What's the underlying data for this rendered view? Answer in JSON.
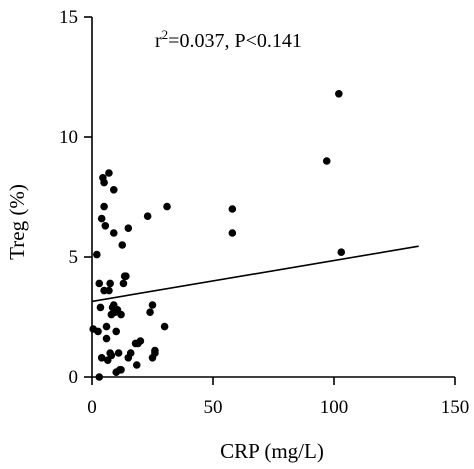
{
  "chart_data": {
    "type": "scatter",
    "title": "",
    "xlabel": "CRP (mg/L)",
    "ylabel": "Treg (%)",
    "xlim": [
      0,
      150
    ],
    "ylim": [
      0,
      15
    ],
    "xticks": [
      0,
      50,
      100,
      150
    ],
    "yticks": [
      0,
      5,
      10,
      15
    ],
    "grid": false,
    "annotation": {
      "r_prefix": "r",
      "r_exponent": "2",
      "r_rest": "=0.037, P<0.141"
    },
    "series": [
      {
        "points": [
          [
            0.5,
            2.0
          ],
          [
            2.0,
            5.1
          ],
          [
            2.5,
            1.9
          ],
          [
            3.0,
            0.0
          ],
          [
            3.0,
            3.9
          ],
          [
            3.5,
            2.9
          ],
          [
            4.0,
            6.6
          ],
          [
            4.0,
            0.8
          ],
          [
            4.5,
            8.3
          ],
          [
            5.0,
            8.1
          ],
          [
            5.0,
            3.6
          ],
          [
            5.0,
            7.1
          ],
          [
            5.5,
            6.3
          ],
          [
            6.0,
            2.1
          ],
          [
            6.0,
            1.6
          ],
          [
            6.5,
            0.7
          ],
          [
            7.0,
            8.5
          ],
          [
            7.0,
            3.6
          ],
          [
            7.5,
            3.9
          ],
          [
            7.5,
            1.0
          ],
          [
            8.0,
            2.6
          ],
          [
            8.0,
            0.9
          ],
          [
            8.5,
            2.9
          ],
          [
            9.0,
            3.0
          ],
          [
            9.0,
            7.8
          ],
          [
            9.0,
            6.0
          ],
          [
            9.5,
            2.7
          ],
          [
            10.0,
            1.9
          ],
          [
            10.0,
            0.2
          ],
          [
            10.5,
            2.8
          ],
          [
            11.0,
            1.0
          ],
          [
            11.5,
            0.3
          ],
          [
            12.0,
            2.6
          ],
          [
            12.0,
            0.3
          ],
          [
            12.5,
            5.5
          ],
          [
            13.0,
            3.9
          ],
          [
            13.5,
            4.2
          ],
          [
            14.0,
            4.2
          ],
          [
            15.0,
            6.2
          ],
          [
            15.0,
            0.8
          ],
          [
            16.0,
            1.0
          ],
          [
            18.0,
            1.4
          ],
          [
            18.5,
            0.5
          ],
          [
            19.0,
            1.4
          ],
          [
            20.0,
            1.5
          ],
          [
            23.0,
            6.7
          ],
          [
            24.0,
            2.7
          ],
          [
            25.0,
            3.0
          ],
          [
            25.0,
            0.8
          ],
          [
            26.0,
            1.0
          ],
          [
            26.0,
            1.1
          ],
          [
            30.0,
            2.1
          ],
          [
            31.0,
            7.1
          ],
          [
            58.0,
            7.0
          ],
          [
            58.0,
            6.0
          ],
          [
            97.0,
            9.0
          ],
          [
            102.0,
            11.8
          ],
          [
            103.0,
            5.2
          ]
        ]
      }
    ],
    "fit_line": {
      "x": [
        0,
        135
      ],
      "y": [
        3.15,
        5.45
      ]
    }
  }
}
